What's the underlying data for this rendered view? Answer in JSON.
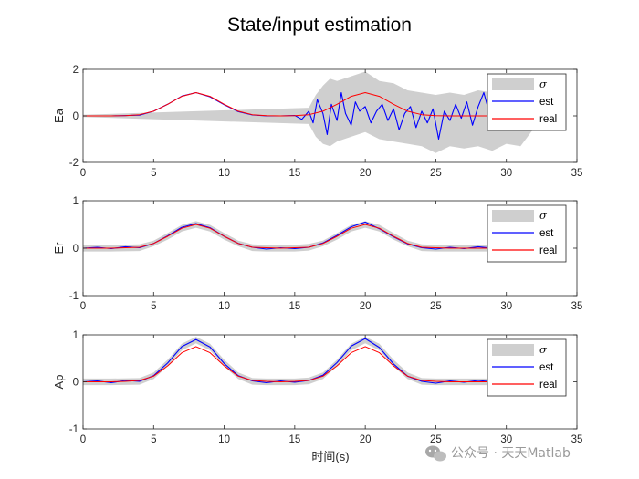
{
  "title": "State/input estimation",
  "xlabel": "时间(s)",
  "watermark": "公众号 · 天天Matlab",
  "colors": {
    "band": "#cfcfcf",
    "est": "#0000ff",
    "real": "#ff0000",
    "axis": "#262626"
  },
  "chart_data": [
    {
      "type": "line",
      "ylabel": "Ea",
      "xlim": [
        0,
        35
      ],
      "ylim": [
        -2,
        2
      ],
      "xticks": [
        0,
        5,
        10,
        15,
        20,
        25,
        30,
        35
      ],
      "yticks": [
        -2,
        0,
        2
      ],
      "legend": {
        "position": "top-right",
        "entries": [
          "σ",
          "est",
          "real"
        ]
      },
      "series": [
        {
          "name": "σ",
          "kind": "band",
          "x": [
            0,
            16,
            16.5,
            17,
            17.5,
            18,
            19,
            20,
            21,
            22,
            23,
            24,
            25,
            26,
            27,
            28,
            29,
            30,
            31,
            32
          ],
          "upper": [
            0.05,
            0.35,
            0.9,
            1.3,
            1.6,
            1.5,
            1.7,
            1.9,
            1.5,
            1.4,
            1.1,
            1.0,
            0.9,
            1.0,
            0.9,
            1.1,
            1.0,
            0.8,
            0.9,
            0.5
          ],
          "lower": [
            -0.05,
            -0.35,
            -0.9,
            -1.2,
            -1.3,
            -1.1,
            -0.9,
            -0.7,
            -1.0,
            -1.1,
            -1.2,
            -1.3,
            -1.6,
            -1.3,
            -1.4,
            -1.3,
            -1.5,
            -1.2,
            -1.3,
            -0.5
          ]
        },
        {
          "name": "est",
          "kind": "line",
          "x": [
            0,
            2,
            4,
            5,
            6,
            7,
            8,
            9,
            10,
            11,
            12,
            13,
            14,
            15,
            15.5,
            16,
            16.3,
            16.6,
            17,
            17.3,
            17.6,
            18,
            18.3,
            18.6,
            19,
            19.3,
            19.6,
            20,
            20.4,
            20.8,
            21.2,
            21.6,
            22,
            22.4,
            22.8,
            23.2,
            23.6,
            24,
            24.4,
            24.8,
            25.2,
            25.6,
            26,
            26.4,
            26.8,
            27.2,
            27.6,
            28,
            28.4,
            28.8,
            29.2,
            29.6,
            30,
            30.4,
            30.8,
            31.2,
            31.5
          ],
          "y": [
            0,
            0,
            0.03,
            0.2,
            0.5,
            0.85,
            1.0,
            0.82,
            0.48,
            0.18,
            0.04,
            0.0,
            0.0,
            0.02,
            -0.15,
            0.2,
            -0.3,
            0.7,
            0.1,
            -0.8,
            0.5,
            -0.2,
            1.0,
            0.1,
            -0.4,
            0.6,
            0.2,
            0.4,
            -0.3,
            0.2,
            0.5,
            -0.2,
            0.3,
            -0.6,
            0.1,
            0.4,
            -0.5,
            0.2,
            -0.3,
            0.3,
            -1.0,
            0.2,
            -0.2,
            0.5,
            -0.1,
            0.6,
            -0.4,
            0.4,
            1.0,
            0.1,
            -0.3,
            0.4,
            0.3,
            -0.2,
            0.5,
            -0.6,
            0.0
          ]
        },
        {
          "name": "real",
          "kind": "line",
          "x": [
            0,
            1,
            2,
            3,
            4,
            5,
            6,
            7,
            8,
            9,
            10,
            11,
            12,
            13,
            14,
            15,
            16,
            17,
            18,
            19,
            20,
            21,
            22,
            23,
            24,
            25,
            26,
            27,
            28,
            29,
            30,
            31,
            32
          ],
          "y": [
            0,
            0,
            0,
            0.01,
            0.05,
            0.2,
            0.5,
            0.84,
            1.0,
            0.84,
            0.5,
            0.2,
            0.05,
            0.01,
            0,
            0.01,
            0.05,
            0.2,
            0.5,
            0.84,
            1.0,
            0.84,
            0.5,
            0.2,
            0.05,
            0.01,
            0,
            0,
            0,
            0,
            0,
            0,
            0
          ]
        }
      ]
    },
    {
      "type": "line",
      "ylabel": "Er",
      "xlim": [
        0,
        35
      ],
      "ylim": [
        -1,
        1
      ],
      "xticks": [
        0,
        5,
        10,
        15,
        20,
        25,
        30,
        35
      ],
      "yticks": [
        -1,
        0,
        1
      ],
      "legend": {
        "position": "top-right",
        "entries": [
          "σ",
          "est",
          "real"
        ]
      },
      "series": [
        {
          "name": "σ",
          "kind": "band",
          "x": [
            0,
            2,
            4,
            5,
            6,
            7,
            8,
            9,
            10,
            11,
            12,
            13,
            14,
            15,
            16,
            17,
            18,
            19,
            20,
            21,
            22,
            23,
            24,
            25,
            26,
            27,
            28,
            29
          ],
          "upper": [
            0.07,
            0.07,
            0.08,
            0.16,
            0.32,
            0.49,
            0.57,
            0.49,
            0.32,
            0.16,
            0.08,
            0.07,
            0.07,
            0.07,
            0.09,
            0.16,
            0.32,
            0.49,
            0.57,
            0.49,
            0.32,
            0.16,
            0.08,
            0.07,
            0.07,
            0.07,
            0.07,
            0.07
          ],
          "lower": [
            -0.07,
            -0.07,
            -0.06,
            0.04,
            0.18,
            0.35,
            0.43,
            0.35,
            0.18,
            0.04,
            -0.06,
            -0.07,
            -0.07,
            -0.07,
            -0.05,
            0.04,
            0.18,
            0.35,
            0.43,
            0.35,
            0.18,
            0.04,
            -0.06,
            -0.07,
            -0.07,
            -0.07,
            -0.07,
            -0.07
          ]
        },
        {
          "name": "est",
          "kind": "line",
          "x": [
            0,
            1,
            2,
            3,
            4,
            5,
            6,
            7,
            8,
            9,
            10,
            11,
            12,
            13,
            14,
            15,
            16,
            17,
            18,
            19,
            20,
            21,
            22,
            23,
            24,
            25,
            26,
            27,
            28,
            29
          ],
          "y": [
            0.0,
            0.02,
            -0.01,
            0.03,
            0.01,
            0.1,
            0.26,
            0.44,
            0.52,
            0.43,
            0.25,
            0.1,
            0.02,
            -0.02,
            0.01,
            -0.01,
            0.02,
            0.11,
            0.27,
            0.45,
            0.55,
            0.41,
            0.24,
            0.09,
            0.01,
            -0.02,
            0.02,
            -0.01,
            0.03,
            0.0
          ]
        },
        {
          "name": "real",
          "kind": "line",
          "x": [
            0,
            1,
            2,
            3,
            4,
            5,
            6,
            7,
            8,
            9,
            10,
            11,
            12,
            13,
            14,
            15,
            16,
            17,
            18,
            19,
            20,
            21,
            22,
            23,
            24,
            25,
            26,
            27,
            28,
            29
          ],
          "y": [
            0,
            0,
            0,
            0.01,
            0.02,
            0.1,
            0.25,
            0.42,
            0.5,
            0.42,
            0.25,
            0.1,
            0.02,
            0.01,
            0,
            0.01,
            0.02,
            0.1,
            0.25,
            0.42,
            0.5,
            0.42,
            0.25,
            0.1,
            0.02,
            0.01,
            0,
            0,
            0,
            0
          ]
        }
      ]
    },
    {
      "type": "line",
      "ylabel": "Ap",
      "xlim": [
        0,
        35
      ],
      "ylim": [
        -1,
        1
      ],
      "xticks": [
        0,
        5,
        10,
        15,
        20,
        25,
        30,
        35
      ],
      "yticks": [
        -1,
        0,
        1
      ],
      "legend": {
        "position": "top-right",
        "entries": [
          "σ",
          "est",
          "real"
        ]
      },
      "series": [
        {
          "name": "σ",
          "kind": "band",
          "x": [
            0,
            2,
            4,
            5,
            6,
            7,
            8,
            9,
            10,
            11,
            12,
            13,
            14,
            15,
            16,
            17,
            18,
            19,
            20,
            21,
            22,
            23,
            24,
            25,
            26,
            27,
            28,
            29
          ],
          "upper": [
            0.07,
            0.07,
            0.08,
            0.2,
            0.47,
            0.81,
            0.96,
            0.81,
            0.47,
            0.2,
            0.08,
            0.07,
            0.07,
            0.07,
            0.09,
            0.2,
            0.47,
            0.81,
            0.96,
            0.81,
            0.47,
            0.2,
            0.08,
            0.07,
            0.07,
            0.07,
            0.07,
            0.07
          ],
          "lower": [
            -0.07,
            -0.07,
            -0.06,
            0.06,
            0.33,
            0.67,
            0.82,
            0.67,
            0.33,
            0.06,
            -0.06,
            -0.07,
            -0.07,
            -0.07,
            -0.05,
            0.06,
            0.33,
            0.67,
            0.82,
            0.67,
            0.33,
            0.06,
            -0.06,
            -0.07,
            -0.07,
            -0.07,
            -0.07,
            -0.07
          ]
        },
        {
          "name": "est",
          "kind": "line",
          "x": [
            0,
            1,
            2,
            3,
            4,
            5,
            6,
            7,
            8,
            9,
            10,
            11,
            12,
            13,
            14,
            15,
            16,
            17,
            18,
            19,
            20,
            21,
            22,
            23,
            24,
            25,
            26,
            27,
            28,
            29
          ],
          "y": [
            0.0,
            0.02,
            -0.02,
            0.03,
            0.01,
            0.13,
            0.4,
            0.75,
            0.9,
            0.74,
            0.39,
            0.13,
            0.02,
            -0.02,
            0.02,
            -0.01,
            0.03,
            0.14,
            0.41,
            0.76,
            0.92,
            0.73,
            0.38,
            0.12,
            0.01,
            -0.03,
            0.02,
            -0.01,
            0.03,
            0.0
          ]
        },
        {
          "name": "real",
          "kind": "line",
          "x": [
            0,
            1,
            2,
            3,
            4,
            5,
            6,
            7,
            8,
            9,
            10,
            11,
            12,
            13,
            14,
            15,
            16,
            17,
            18,
            19,
            20,
            21,
            22,
            23,
            24,
            25,
            26,
            27,
            28,
            29
          ],
          "y": [
            0,
            0,
            0,
            0.01,
            0.03,
            0.12,
            0.34,
            0.62,
            0.75,
            0.62,
            0.34,
            0.12,
            0.03,
            0.01,
            0,
            0.01,
            0.03,
            0.12,
            0.34,
            0.62,
            0.75,
            0.62,
            0.34,
            0.12,
            0.03,
            0.01,
            0,
            0,
            0,
            0
          ]
        }
      ]
    }
  ]
}
